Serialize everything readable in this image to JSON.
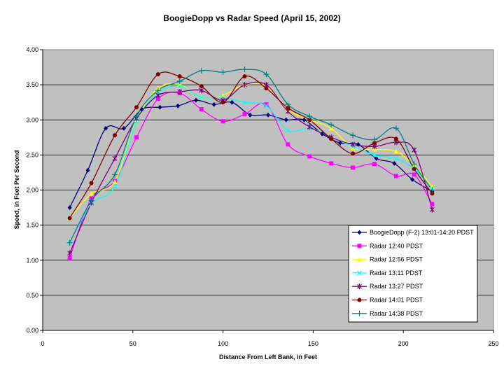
{
  "chart_data": {
    "type": "line",
    "title": "BoogieDopp vs Radar Speed (April 15, 2002)",
    "xlabel": "Distance From Left Bank, in Feet",
    "ylabel": "Speed, in Feet Per Second",
    "xlim": [
      0,
      250
    ],
    "ylim": [
      0,
      4
    ],
    "x_ticks": [
      "0",
      "50",
      "100",
      "150",
      "200",
      "250"
    ],
    "y_ticks": [
      "0.00",
      "0.50",
      "1.00",
      "1.50",
      "2.00",
      "2.50",
      "3.00",
      "3.50",
      "4.00"
    ],
    "grid": "horizontal",
    "legend_position": "lower-right",
    "plot_background": "#c0c0c0",
    "series": [
      {
        "name": "BoogieDopp (F-2) 13:01-14:20 PDST",
        "color": "#000080",
        "marker": "diamond",
        "x": [
          15,
          25,
          35,
          45,
          55,
          65,
          75,
          85,
          95,
          105,
          115,
          125,
          135,
          145,
          155,
          165,
          175,
          185,
          195,
          205,
          216
        ],
        "y": [
          1.75,
          2.28,
          2.88,
          2.88,
          3.15,
          3.18,
          3.2,
          3.28,
          3.22,
          3.25,
          3.07,
          3.07,
          3.0,
          3.0,
          2.8,
          2.67,
          2.65,
          2.45,
          2.38,
          2.15,
          1.98
        ]
      },
      {
        "name": "Radar 12:40 PDST",
        "color": "#ff00ff",
        "marker": "square",
        "x": [
          15,
          27,
          40,
          52,
          64,
          76,
          88,
          100,
          112,
          124,
          136,
          148,
          160,
          172,
          184,
          196,
          206,
          216
        ],
        "y": [
          1.03,
          1.88,
          2.13,
          2.75,
          3.3,
          3.38,
          3.15,
          2.98,
          3.08,
          3.22,
          2.65,
          2.48,
          2.38,
          2.32,
          2.37,
          2.2,
          2.22,
          1.8
        ]
      },
      {
        "name": "Radar 12:56 PDST",
        "color": "#ffff00",
        "marker": "triangle",
        "x": [
          15,
          27,
          40,
          52,
          64,
          76,
          88,
          100,
          112,
          124,
          136,
          148,
          160,
          172,
          184,
          196,
          206,
          216
        ],
        "y": [
          1.6,
          1.95,
          2.12,
          3.0,
          3.45,
          3.5,
          3.32,
          3.35,
          3.5,
          3.48,
          3.15,
          3.0,
          2.88,
          2.6,
          2.58,
          2.55,
          2.35,
          2.05
        ]
      },
      {
        "name": "Radar 13:11 PDST",
        "color": "#00ffff",
        "marker": "x",
        "x": [
          15,
          27,
          40,
          52,
          64,
          76,
          88,
          100,
          112,
          124,
          136,
          148,
          160,
          172,
          184,
          196,
          206,
          216
        ],
        "y": [
          1.25,
          1.8,
          2.05,
          2.98,
          3.38,
          3.48,
          3.32,
          3.32,
          3.25,
          3.2,
          2.85,
          2.88,
          2.75,
          2.62,
          2.5,
          2.45,
          2.3,
          2.02
        ]
      },
      {
        "name": "Radar 13:27 PDST",
        "color": "#800080",
        "marker": "star",
        "x": [
          15,
          27,
          40,
          52,
          64,
          76,
          88,
          100,
          112,
          124,
          136,
          148,
          160,
          172,
          184,
          196,
          206,
          216
        ],
        "y": [
          1.1,
          1.82,
          2.45,
          3.02,
          3.35,
          3.4,
          3.42,
          3.28,
          3.5,
          3.5,
          3.12,
          2.9,
          2.75,
          2.65,
          2.62,
          2.68,
          2.57,
          1.72
        ]
      },
      {
        "name": "Radar 14:01 PDST",
        "color": "#800000",
        "marker": "circle",
        "x": [
          15,
          27,
          40,
          52,
          64,
          76,
          88,
          100,
          112,
          124,
          136,
          148,
          160,
          172,
          184,
          196,
          206,
          216
        ],
        "y": [
          1.6,
          2.1,
          2.78,
          3.18,
          3.65,
          3.62,
          3.48,
          3.25,
          3.62,
          3.45,
          3.17,
          3.0,
          2.73,
          2.52,
          2.67,
          2.73,
          2.3,
          1.95
        ]
      },
      {
        "name": "Radar 14:38 PDST",
        "color": "#008080",
        "marker": "plus",
        "x": [
          15,
          27,
          40,
          52,
          64,
          76,
          88,
          100,
          112,
          124,
          136,
          148,
          160,
          172,
          184,
          196,
          206,
          216
        ],
        "y": [
          1.25,
          1.85,
          2.22,
          3.05,
          3.42,
          3.55,
          3.7,
          3.68,
          3.72,
          3.65,
          3.22,
          3.05,
          2.93,
          2.78,
          2.72,
          2.88,
          2.37,
          2.0
        ]
      }
    ]
  }
}
